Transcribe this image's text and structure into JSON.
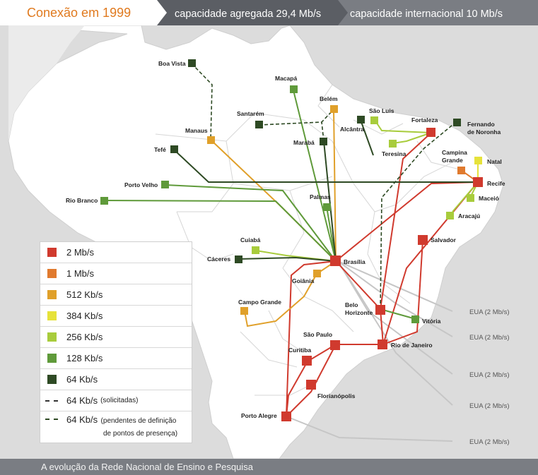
{
  "title": "Conexão em 1999",
  "header_band_1": "capacidade agregada 29,4 Mb/s",
  "header_band_2": "capacidade internacional  10 Mb/s",
  "footer": "A evolução da Rede Nacional de Ensino e Pesquisa",
  "colors": {
    "2mb": "#d03a2e",
    "1mb": "#e07a2e",
    "512kb": "#e0a02a",
    "384kb": "#e6e23a",
    "256kb": "#a8cc3c",
    "128kb": "#5f9a3a",
    "64kb": "#2e4a24",
    "header_band_1": "#5b5e64",
    "header_band_2": "#7a7d83",
    "eua_line": "#c6c6c6",
    "land": "#ffffff",
    "sea": "#dcdcdc"
  },
  "cities": {
    "boa_vista": "Boa Vista",
    "macapa": "Macapá",
    "belem": "Belém",
    "santarem": "Santarém",
    "manaus": "Manaus",
    "maraba": "Marabá",
    "alcantra": "Alcântra",
    "sao_luis": "São Luis",
    "fortaleza": "Fortaleza",
    "fernando_noronha": "Fernando\nde Noronha",
    "tefe": "Tefé",
    "teresina": "Teresina",
    "campina_grande": "Campina\nGrande",
    "natal": "Natal",
    "recife": "Recife",
    "porto_velho": "Porto Velho",
    "rio_branco": "Rio Branco",
    "maceio": "Maceió",
    "aracaju": "Aracajú",
    "palmas": "Palmas",
    "salvador": "Salvador",
    "cuiaba": "Cuiabá",
    "caceres": "Cáceres",
    "brasilia": "Brasília",
    "goiania": "Goiânia",
    "campo_grande": "Campo Grande",
    "belo_horizonte": "Belo\nHorizonte",
    "vitoria": "Vitória",
    "sao_paulo": "São Paulo",
    "rio_de_janeiro": "Rio de Janeiro",
    "curitiba": "Curitiba",
    "florianopolis": "Florianópolis",
    "porto_alegre": "Porto Alegre"
  },
  "international_links": [
    "EUA (2 Mb/s)",
    "EUA (2 Mb/s)",
    "EUA (2 Mb/s)",
    "EUA (2 Mb/s)",
    "EUA (2 Mb/s)"
  ],
  "legend": [
    {
      "label": "2 Mb/s",
      "color_key": "2mb"
    },
    {
      "label": "1 Mb/s",
      "color_key": "1mb"
    },
    {
      "label": "512 Kb/s",
      "color_key": "512kb"
    },
    {
      "label": "384 Kb/s",
      "color_key": "384kb"
    },
    {
      "label": "256 Kb/s",
      "color_key": "256kb"
    },
    {
      "label": "128 Kb/s",
      "color_key": "128kb"
    },
    {
      "label": "64 Kb/s",
      "color_key": "64kb"
    },
    {
      "label": "64 Kb/s",
      "note": "(solicitadas)"
    },
    {
      "label": "64 Kb/s",
      "note": "(pendentes de definição",
      "note2": "de pontos de presença)"
    }
  ]
}
